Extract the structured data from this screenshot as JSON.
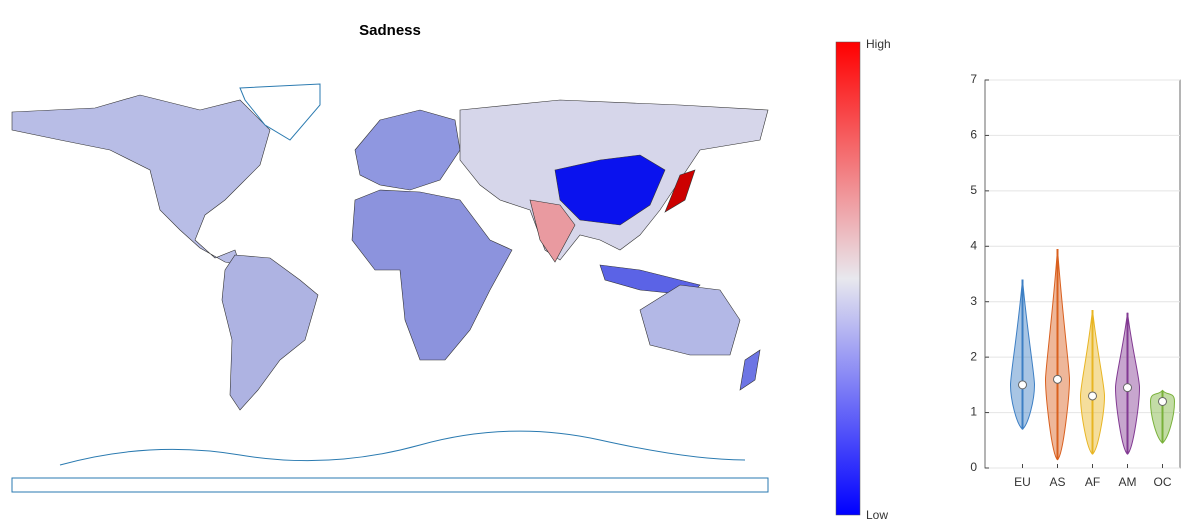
{
  "chart_data": [
    {
      "type": "map",
      "title": "Sadness",
      "colorbar": {
        "high_label": "High",
        "low_label": "Low"
      }
    },
    {
      "type": "violin",
      "categories": [
        "EU",
        "AS",
        "AF",
        "AM",
        "OC"
      ],
      "series": [
        {
          "color": "#3d7fc4",
          "min": 0.7,
          "max": 3.4,
          "median": 1.5
        },
        {
          "color": "#d9601f",
          "min": 0.15,
          "max": 3.95,
          "median": 1.6
        },
        {
          "color": "#e8b523",
          "min": 0.25,
          "max": 2.85,
          "median": 1.3
        },
        {
          "color": "#823a92",
          "min": 0.25,
          "max": 2.8,
          "median": 1.45
        },
        {
          "color": "#79b13a",
          "min": 0.45,
          "max": 1.4,
          "median": 1.2
        }
      ],
      "ylim": [
        0,
        7
      ],
      "yticks": [
        0,
        1,
        2,
        3,
        4,
        5,
        6,
        7
      ],
      "grid": true
    }
  ]
}
